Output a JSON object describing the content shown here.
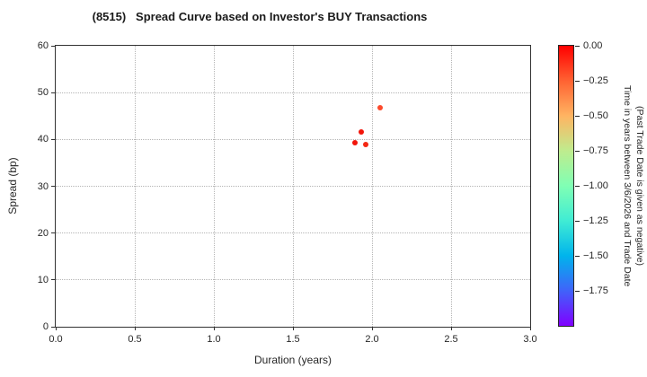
{
  "chart_data": {
    "type": "scatter",
    "title": "(8515)   Spread Curve based on Investor's BUY Transactions",
    "xlabel": "Duration (years)",
    "ylabel": "Spread (bp)",
    "xlim": [
      0.0,
      3.0
    ],
    "ylim": [
      0,
      60
    ],
    "grid": "dotted",
    "x_ticks": [
      {
        "value": 0.0,
        "label": "0.0"
      },
      {
        "value": 0.5,
        "label": "0.5"
      },
      {
        "value": 1.0,
        "label": "1.0"
      },
      {
        "value": 1.5,
        "label": "1.5"
      },
      {
        "value": 2.0,
        "label": "2.0"
      },
      {
        "value": 2.5,
        "label": "2.5"
      },
      {
        "value": 3.0,
        "label": "3.0"
      }
    ],
    "y_ticks": [
      {
        "value": 0,
        "label": "0"
      },
      {
        "value": 10,
        "label": "10"
      },
      {
        "value": 20,
        "label": "20"
      },
      {
        "value": 30,
        "label": "30"
      },
      {
        "value": 40,
        "label": "40"
      },
      {
        "value": 50,
        "label": "50"
      },
      {
        "value": 60,
        "label": "60"
      }
    ],
    "points": [
      {
        "x": 2.05,
        "y": 46.8,
        "time_years": -0.15,
        "color": "#fc4a2c"
      },
      {
        "x": 1.93,
        "y": 41.6,
        "time_years": -0.03,
        "color": "#f2150a"
      },
      {
        "x": 1.89,
        "y": 39.3,
        "time_years": -0.03,
        "color": "#f2150a"
      },
      {
        "x": 1.96,
        "y": 38.9,
        "time_years": -0.06,
        "color": "#f42814"
      }
    ],
    "colorbar": {
      "label_line1": "Time in years between 3/6/2026 and Trade Date",
      "label_line2": "(Past Trade Date is given as negative)",
      "range_top": 0.0,
      "range_bottom": -2.0,
      "ticks": [
        {
          "value": 0.0,
          "label": "0.00"
        },
        {
          "value": -0.25,
          "label": "−0.25"
        },
        {
          "value": -0.5,
          "label": "−0.50"
        },
        {
          "value": -0.75,
          "label": "−0.75"
        },
        {
          "value": -1.0,
          "label": "−1.00"
        },
        {
          "value": -1.25,
          "label": "−1.25"
        },
        {
          "value": -1.5,
          "label": "−1.50"
        },
        {
          "value": -1.75,
          "label": "−1.75"
        }
      ],
      "colormap_name": "rainbow",
      "gradient_stops": [
        {
          "pos": 0.0,
          "color": "#ff0000"
        },
        {
          "pos": 12.5,
          "color": "#ff6232"
        },
        {
          "pos": 25.0,
          "color": "#ffb462"
        },
        {
          "pos": 37.5,
          "color": "#bfec8e"
        },
        {
          "pos": 50.0,
          "color": "#80ffb4"
        },
        {
          "pos": 62.5,
          "color": "#40ecd4"
        },
        {
          "pos": 75.0,
          "color": "#00b4ec"
        },
        {
          "pos": 87.5,
          "color": "#4062fa"
        },
        {
          "pos": 100.0,
          "color": "#8000ff"
        }
      ]
    }
  }
}
